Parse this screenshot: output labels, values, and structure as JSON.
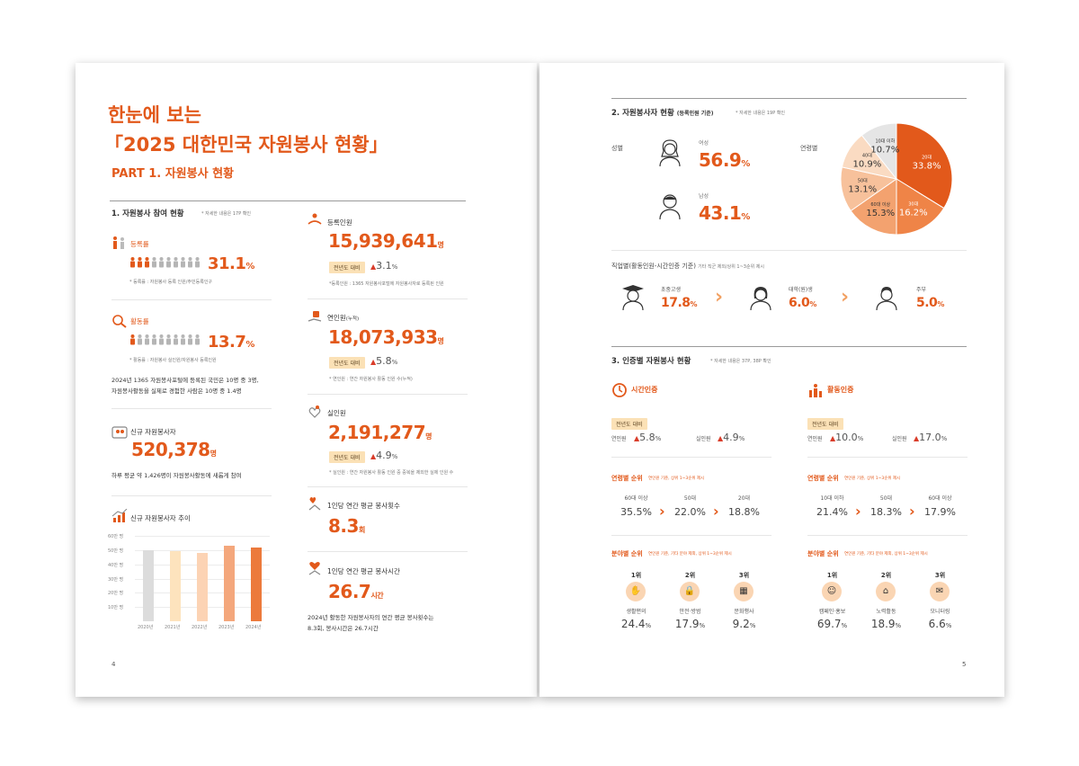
{
  "left": {
    "title1": "한눈에 보는",
    "title2": "「2025 대한민국 자원봉사 현황」",
    "part": "PART 1. 자원봉사 현황",
    "section1": "1. 자원봉사 참여 현황",
    "section1_note": "* 자세한 내용은 17P 확인",
    "reg_rate": {
      "label": "등록률",
      "value": "31.1",
      "unit": "%",
      "note": "* 등록률 : 자원봉사 등록 인원/주민등록인구",
      "filled": 3
    },
    "act_rate": {
      "label": "활동률",
      "value": "13.7",
      "unit": "%",
      "note": "* 활동률 : 자원봉사 실인원/자원봉사 등록인원",
      "filled": 1,
      "desc1": "2024년 1365 자원봉사포털에 등록된 국민은 10명 중 3명,",
      "desc2": "자원봉사활동을 실제로 경험한 사람은 10명 중 1.4명"
    },
    "new": {
      "label": "신규 자원봉사자",
      "value": "520,378",
      "unit": "명",
      "desc": "하루 평균 약 1,426명이 자원봉사활동에 새롭게 참여"
    },
    "chart_title": "신규 자원봉사자 추이",
    "registered": {
      "label": "등록인원",
      "value": "15,939,641",
      "unit": "명",
      "badge": "전년도 대비",
      "change": "3.1",
      "pct": "%",
      "note": "*등록인원 : 1365 자원봉사포털에 자원봉사자로 등록된 인원"
    },
    "cumulative": {
      "label": "연인원",
      "label_sub": "(누적)",
      "value": "18,073,933",
      "unit": "명",
      "badge": "전년도 대비",
      "change": "5.8",
      "pct": "%",
      "note": "* 연인원 : 연간 자원봉사 활동 인원 수(누적)"
    },
    "actual": {
      "label": "실인원",
      "value": "2,191,277",
      "unit": "명",
      "badge": "전년도 대비",
      "change": "4.9",
      "pct": "%",
      "note": "* 실인원 : 연간 자원봉사 활동 인원 중 중복을 제외한 실제 인원 수"
    },
    "per_count": {
      "label": "1인당 연간 평균 봉사횟수",
      "value": "8.3",
      "unit": "회"
    },
    "per_hours": {
      "label": "1인당 연간 평균 봉사시간",
      "value": "26.7",
      "unit": "시간",
      "desc1": "2024년 활동한 자원봉사자의 연간 평균 봉사횟수는",
      "desc2": "8.3회, 봉사시간은 26.7시간"
    },
    "page_no": "4"
  },
  "chart_data": {
    "type": "bar",
    "title": "신규 자원봉사자 추이",
    "categories": [
      "2020년",
      "2021년",
      "2022년",
      "2023년",
      "2024년"
    ],
    "values": [
      50,
      49,
      48,
      53,
      52
    ],
    "yticks": [
      "10만 명",
      "20만 명",
      "30만 명",
      "40만 명",
      "50만 명",
      "60만 명"
    ],
    "ylim": [
      0,
      60
    ],
    "colors": [
      "#dcdcdc",
      "#fde3bd",
      "#fcd3b4",
      "#f4a77c",
      "#ec7a3c"
    ]
  },
  "right": {
    "section2": "2. 자원봉사자 현황",
    "section2_sub": "(등록인원 기준)",
    "section2_note": "* 자세한 내용은 19P 확인",
    "gender_label": "성별",
    "female": {
      "label": "여성",
      "value": "56.9",
      "unit": "%"
    },
    "male": {
      "label": "남성",
      "value": "43.1",
      "unit": "%"
    },
    "age_label": "연령별",
    "age_slices": [
      {
        "label": "20대",
        "value": "33.8%"
      },
      {
        "label": "30대",
        "value": "16.2%"
      },
      {
        "label": "60대 이상",
        "value": "15.3%"
      },
      {
        "label": "50대",
        "value": "13.1%"
      },
      {
        "label": "40대",
        "value": "10.9%"
      },
      {
        "label": "10대 이하",
        "value": "10.7%"
      }
    ],
    "job_title": "직업별(활동인원-시간인증 기준)",
    "job_note": "기타 직군 제외/상위 1~3순위 제시",
    "jobs": [
      {
        "label": "초중고생",
        "value": "17.8",
        "unit": "%"
      },
      {
        "label": "대학(원)생",
        "value": "6.0",
        "unit": "%"
      },
      {
        "label": "주부",
        "value": "5.0",
        "unit": "%"
      }
    ],
    "section3": "3. 인증별 자원봉사 현황",
    "section3_note": "* 자세한 내용은 37P, 38P 확인",
    "time": {
      "title": "시간인증",
      "badge": "전년도 대비",
      "c1_label": "연인원",
      "c1": "5.8",
      "c2_label": "실인원",
      "c2": "4.9",
      "pct": "%",
      "age_title": "연령별 순위",
      "age_note": "연인원 기준, 상위 1~3순위 제시",
      "ages": [
        {
          "label": "60대 이상",
          "value": "35.5%"
        },
        {
          "label": "50대",
          "value": "22.0%"
        },
        {
          "label": "20대",
          "value": "18.8%"
        }
      ],
      "field_title": "분야별 순위",
      "field_note": "연인원 기준, 기타 분야 제외, 상위 1~3순위 제시",
      "fields": [
        {
          "rank": "1위",
          "label": "생활편의",
          "value": "24.4",
          "icon": "✋"
        },
        {
          "rank": "2위",
          "label": "안전·방범",
          "value": "17.9",
          "icon": "🔒"
        },
        {
          "rank": "3위",
          "label": "문화행사",
          "value": "9.2",
          "icon": "▦"
        }
      ]
    },
    "activity": {
      "title": "활동인증",
      "badge": "전년도 대비",
      "c1_label": "연인원",
      "c1": "10.0",
      "c2_label": "실인원",
      "c2": "17.0",
      "pct": "%",
      "age_title": "연령별 순위",
      "age_note": "연인원 기준, 상위 1~3순위 제시",
      "ages": [
        {
          "label": "10대 이하",
          "value": "21.4%"
        },
        {
          "label": "50대",
          "value": "18.3%"
        },
        {
          "label": "60대 이상",
          "value": "17.9%"
        }
      ],
      "field_title": "분야별 순위",
      "field_note": "연인원 기준, 기타 분야 제외, 상위 1~3순위 제시",
      "fields": [
        {
          "rank": "1위",
          "label": "캠페인·홍보",
          "value": "69.7",
          "icon": "☺"
        },
        {
          "rank": "2위",
          "label": "노력활동",
          "value": "18.9",
          "icon": "⌂"
        },
        {
          "rank": "3위",
          "label": "모니터링",
          "value": "6.6",
          "icon": "✉"
        }
      ]
    },
    "page_no": "5"
  },
  "colors": {
    "accent": "#e2591b",
    "badge": "#fbe1b6",
    "triangle": "#d93c2a",
    "chevron": "#f2a163"
  }
}
